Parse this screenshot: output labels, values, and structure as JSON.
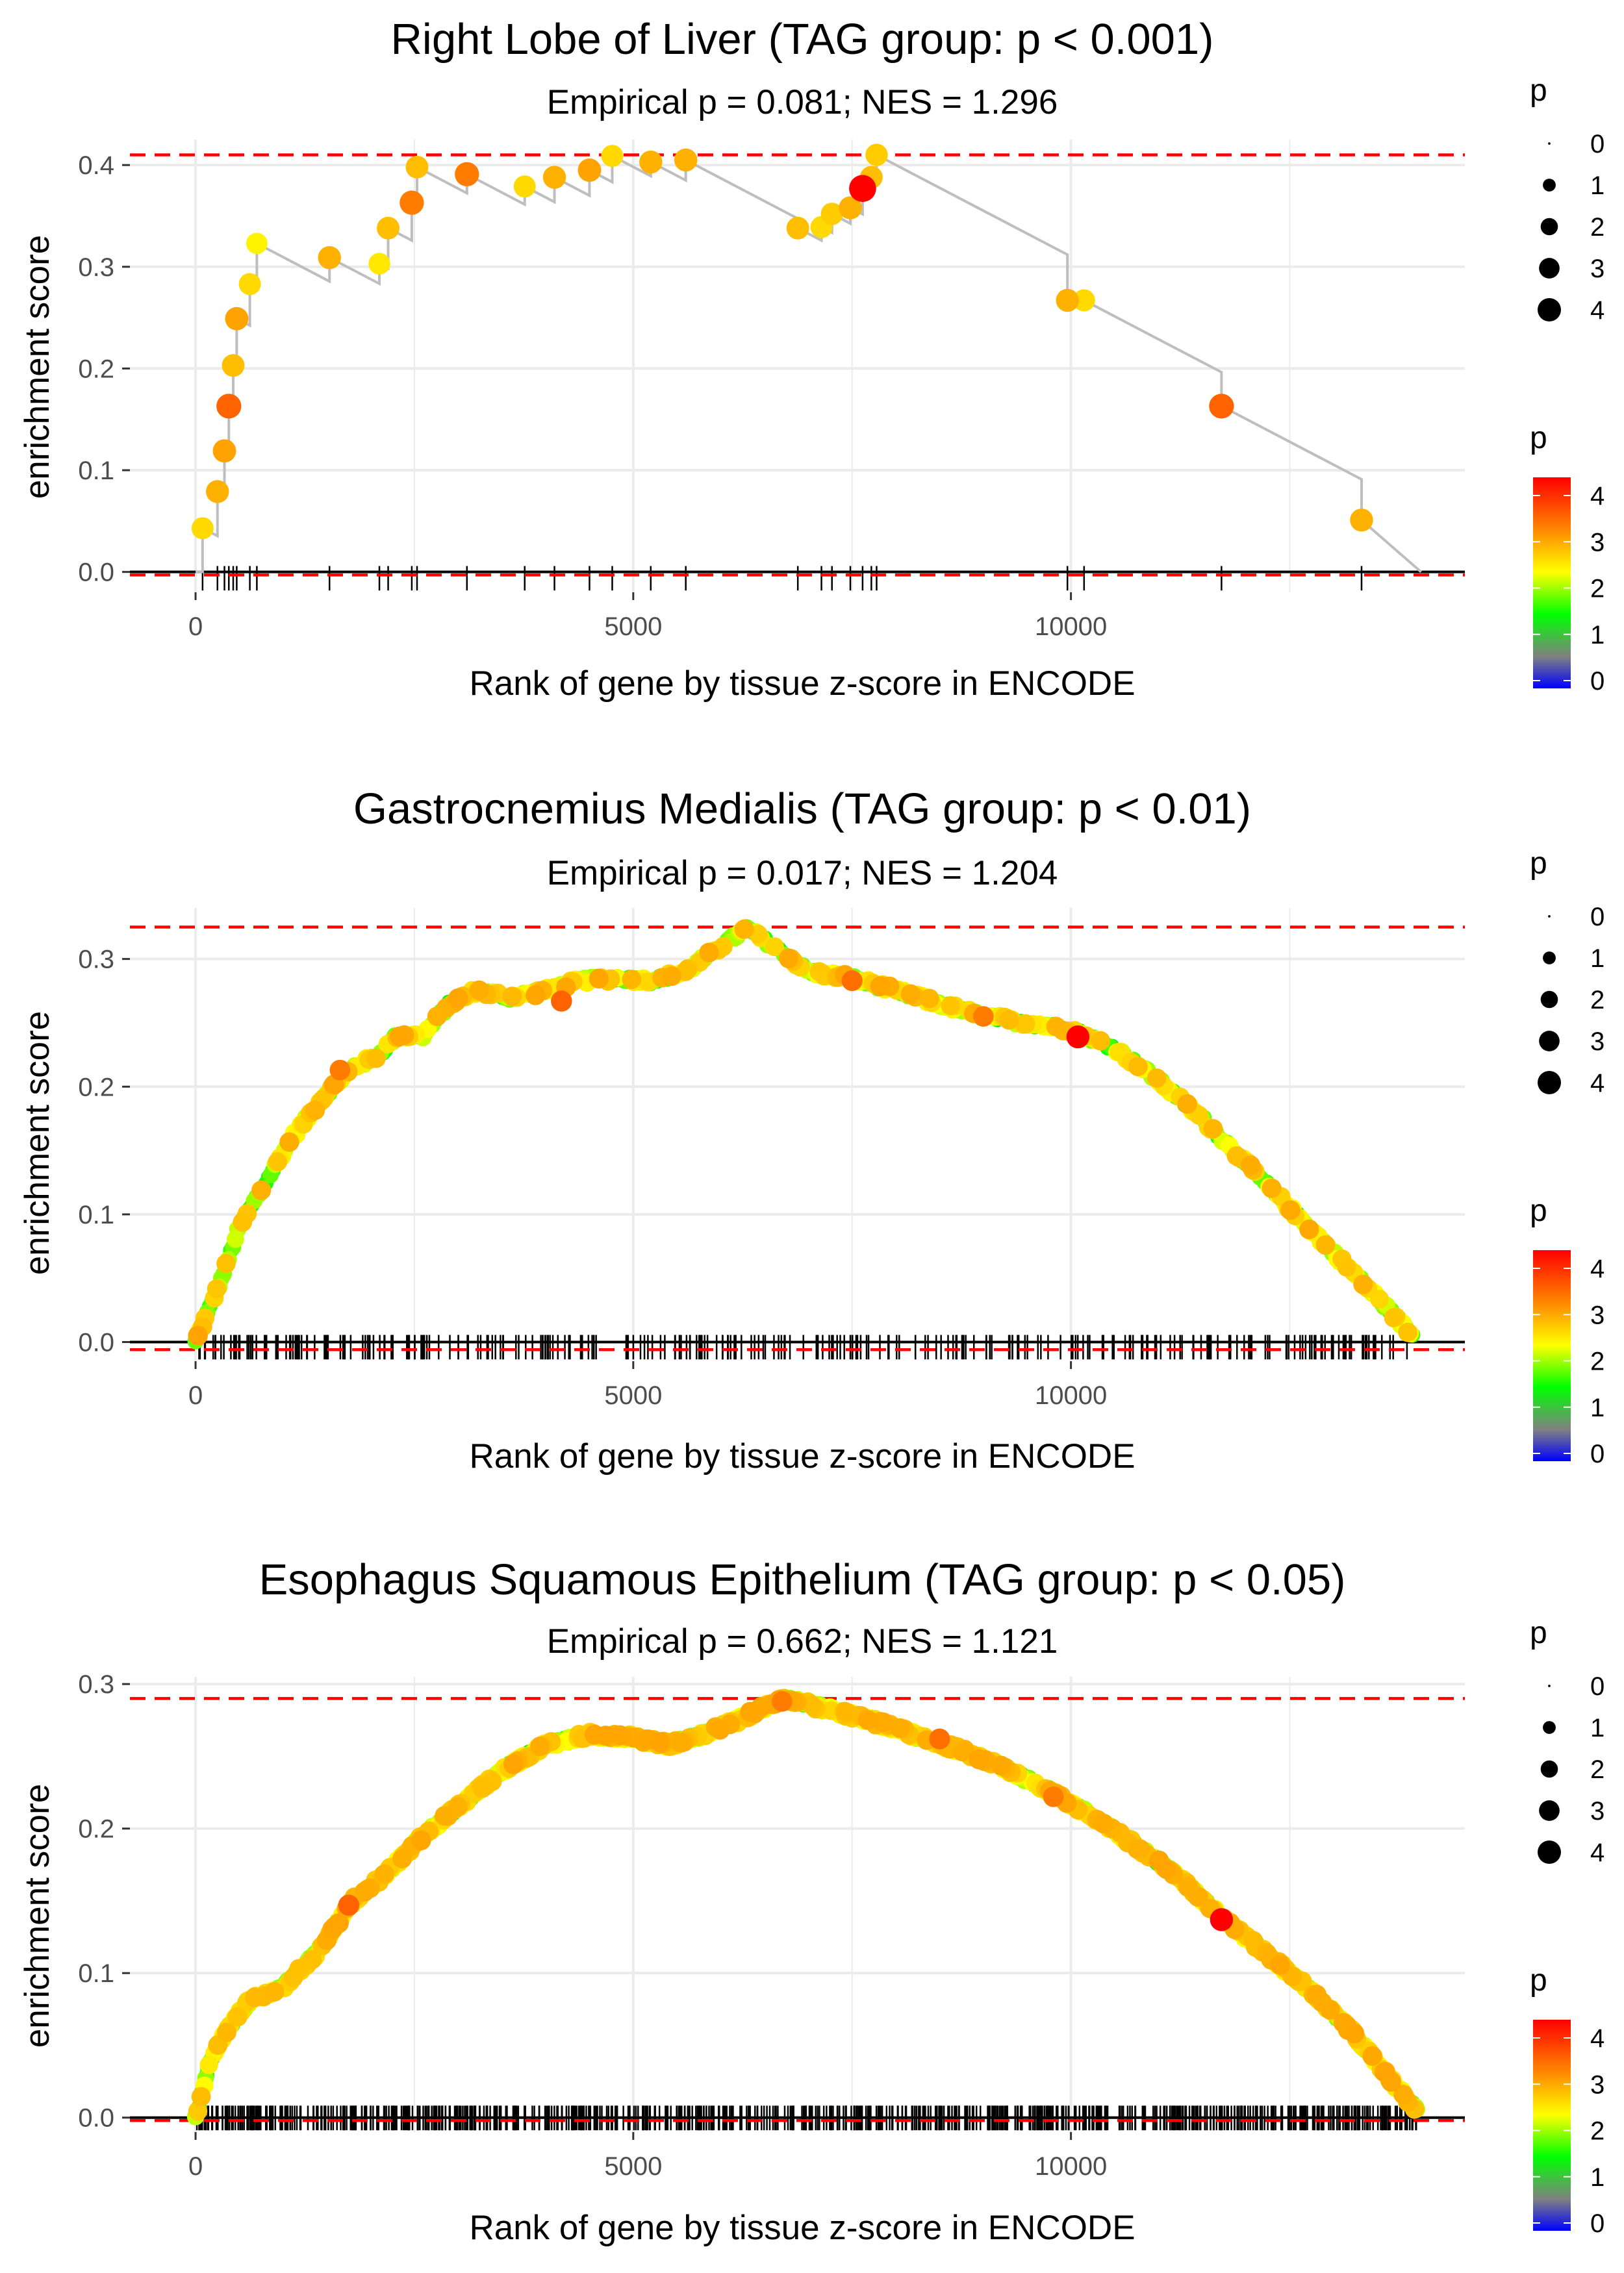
{
  "chart_data": [
    {
      "type": "scatter",
      "title": "Right Lobe of Liver (TAG group: p < 0.001)",
      "subtitle": "Empirical p = 0.081; NES = 1.296",
      "xlabel": "Rank of gene by tissue z-score in ENCODE",
      "ylabel": "enrichment score",
      "xlim": [
        -750,
        14500
      ],
      "ylim": [
        -0.02,
        0.425
      ],
      "xticks": [
        0,
        5000,
        10000
      ],
      "yticks": [
        0.0,
        0.1,
        0.2,
        0.3,
        0.4
      ],
      "yticklabels": [
        "0.0",
        "0.1",
        "0.2",
        "0.3",
        "0.4"
      ],
      "max_line": 0.41,
      "min_line": -0.003,
      "n_genes": 14000,
      "points": [
        {
          "x": 80,
          "y": 0.043,
          "p": 2.7
        },
        {
          "x": 250,
          "y": 0.079,
          "p": 3.0
        },
        {
          "x": 330,
          "y": 0.119,
          "p": 3.1
        },
        {
          "x": 380,
          "y": 0.163,
          "p": 3.6
        },
        {
          "x": 430,
          "y": 0.203,
          "p": 2.9
        },
        {
          "x": 470,
          "y": 0.249,
          "p": 3.1
        },
        {
          "x": 620,
          "y": 0.283,
          "p": 2.7
        },
        {
          "x": 700,
          "y": 0.323,
          "p": 2.5
        },
        {
          "x": 1530,
          "y": 0.309,
          "p": 3.0
        },
        {
          "x": 2100,
          "y": 0.303,
          "p": 2.6
        },
        {
          "x": 2200,
          "y": 0.338,
          "p": 2.9
        },
        {
          "x": 2470,
          "y": 0.363,
          "p": 3.4
        },
        {
          "x": 2530,
          "y": 0.398,
          "p": 2.9
        },
        {
          "x": 3100,
          "y": 0.391,
          "p": 3.4
        },
        {
          "x": 3760,
          "y": 0.379,
          "p": 2.7
        },
        {
          "x": 4100,
          "y": 0.388,
          "p": 3.0
        },
        {
          "x": 4500,
          "y": 0.395,
          "p": 3.1
        },
        {
          "x": 4760,
          "y": 0.409,
          "p": 2.7
        },
        {
          "x": 5200,
          "y": 0.403,
          "p": 3.0
        },
        {
          "x": 5600,
          "y": 0.405,
          "p": 3.0
        },
        {
          "x": 6880,
          "y": 0.338,
          "p": 2.9
        },
        {
          "x": 7150,
          "y": 0.339,
          "p": 2.7
        },
        {
          "x": 7270,
          "y": 0.352,
          "p": 2.8
        },
        {
          "x": 7480,
          "y": 0.358,
          "p": 3.0
        },
        {
          "x": 7620,
          "y": 0.377,
          "p": 4.4
        },
        {
          "x": 7720,
          "y": 0.388,
          "p": 2.9
        },
        {
          "x": 7780,
          "y": 0.41,
          "p": 2.8
        },
        {
          "x": 9960,
          "y": 0.267,
          "p": 3.0
        },
        {
          "x": 10150,
          "y": 0.267,
          "p": 2.7
        },
        {
          "x": 11720,
          "y": 0.163,
          "p": 3.6
        },
        {
          "x": 13320,
          "y": 0.051,
          "p": 3.0
        }
      ]
    },
    {
      "type": "scatter",
      "title": "Gastrocnemius Medialis (TAG group: p < 0.01)",
      "subtitle": "Empirical p = 0.017; NES = 1.204",
      "xlabel": "Rank of gene by tissue z-score in ENCODE",
      "ylabel": "enrichment score",
      "xlim": [
        -750,
        14500
      ],
      "ylim": [
        -0.015,
        0.34
      ],
      "xticks": [
        0,
        5000,
        10000
      ],
      "yticks": [
        0.0,
        0.1,
        0.2,
        0.3
      ],
      "yticklabels": [
        "0.0",
        "0.1",
        "0.2",
        "0.3"
      ],
      "max_line": 0.325,
      "min_line": -0.006,
      "n_genes": 14000,
      "curve": [
        [
          0,
          0.0
        ],
        [
          150,
          0.025
        ],
        [
          300,
          0.05
        ],
        [
          500,
          0.09
        ],
        [
          800,
          0.125
        ],
        [
          1100,
          0.16
        ],
        [
          1500,
          0.195
        ],
        [
          1800,
          0.215
        ],
        [
          2100,
          0.225
        ],
        [
          2300,
          0.24
        ],
        [
          2600,
          0.24
        ],
        [
          2900,
          0.265
        ],
        [
          3200,
          0.275
        ],
        [
          3600,
          0.27
        ],
        [
          4000,
          0.275
        ],
        [
          4400,
          0.283
        ],
        [
          4800,
          0.285
        ],
        [
          5200,
          0.283
        ],
        [
          5600,
          0.29
        ],
        [
          6000,
          0.31
        ],
        [
          6300,
          0.324
        ],
        [
          6600,
          0.31
        ],
        [
          7000,
          0.29
        ],
        [
          7500,
          0.285
        ],
        [
          8000,
          0.275
        ],
        [
          8500,
          0.265
        ],
        [
          9000,
          0.255
        ],
        [
          9500,
          0.25
        ],
        [
          10000,
          0.245
        ],
        [
          10500,
          0.23
        ],
        [
          11000,
          0.205
        ],
        [
          11500,
          0.175
        ],
        [
          12000,
          0.14
        ],
        [
          12500,
          0.105
        ],
        [
          13000,
          0.07
        ],
        [
          13500,
          0.035
        ],
        [
          13900,
          0.005
        ]
      ],
      "highlight": [
        {
          "x": 10080,
          "y": 0.239,
          "p": 4.4
        },
        {
          "x": 4180,
          "y": 0.267,
          "p": 3.6
        },
        {
          "x": 1650,
          "y": 0.213,
          "p": 3.4
        },
        {
          "x": 7500,
          "y": 0.283,
          "p": 3.5
        },
        {
          "x": 9000,
          "y": 0.255,
          "p": 3.4
        }
      ],
      "n_points": 520,
      "n_ticks": 300
    },
    {
      "type": "scatter",
      "title": "Esophagus Squamous Epithelium (TAG group: p < 0.05)",
      "subtitle": "Empirical p = 0.662; NES = 1.121",
      "xlabel": "Rank of gene by tissue z-score in ENCODE",
      "ylabel": "enrichment score",
      "xlim": [
        -750,
        14500
      ],
      "ylim": [
        -0.01,
        0.305
      ],
      "xticks": [
        0,
        5000,
        10000
      ],
      "yticks": [
        0.0,
        0.1,
        0.2,
        0.3
      ],
      "yticklabels": [
        "0.0",
        "0.1",
        "0.2",
        "0.3"
      ],
      "max_line": 0.29,
      "min_line": -0.002,
      "n_genes": 14000,
      "curve": [
        [
          0,
          0.0
        ],
        [
          150,
          0.035
        ],
        [
          300,
          0.055
        ],
        [
          600,
          0.08
        ],
        [
          1000,
          0.09
        ],
        [
          1400,
          0.115
        ],
        [
          1800,
          0.15
        ],
        [
          2200,
          0.17
        ],
        [
          2600,
          0.195
        ],
        [
          3000,
          0.215
        ],
        [
          3500,
          0.24
        ],
        [
          4000,
          0.258
        ],
        [
          4500,
          0.265
        ],
        [
          5000,
          0.263
        ],
        [
          5400,
          0.258
        ],
        [
          5800,
          0.265
        ],
        [
          6200,
          0.275
        ],
        [
          6700,
          0.29
        ],
        [
          7200,
          0.283
        ],
        [
          7700,
          0.275
        ],
        [
          8200,
          0.265
        ],
        [
          8700,
          0.255
        ],
        [
          9200,
          0.243
        ],
        [
          9700,
          0.228
        ],
        [
          10200,
          0.21
        ],
        [
          10700,
          0.19
        ],
        [
          11200,
          0.168
        ],
        [
          11700,
          0.14
        ],
        [
          12200,
          0.115
        ],
        [
          12700,
          0.09
        ],
        [
          13200,
          0.06
        ],
        [
          13600,
          0.03
        ],
        [
          13950,
          0.005
        ]
      ],
      "highlight": [
        {
          "x": 11720,
          "y": 0.137,
          "p": 4.4
        },
        {
          "x": 1750,
          "y": 0.147,
          "p": 3.6
        },
        {
          "x": 6700,
          "y": 0.288,
          "p": 3.4
        },
        {
          "x": 8500,
          "y": 0.262,
          "p": 3.5
        },
        {
          "x": 9800,
          "y": 0.222,
          "p": 3.4
        }
      ],
      "n_points": 1100,
      "n_ticks": 720
    }
  ],
  "legend": {
    "size_title": "p",
    "size_labels": [
      "0",
      "1",
      "2",
      "3",
      "4"
    ],
    "color_title": "p",
    "color_labels": [
      "4",
      "3",
      "2",
      "1",
      "0"
    ]
  },
  "colors": {
    "grid": "#ebebeb",
    "max_line": "#ff0000",
    "curve": "#bebebe",
    "ticks": "#000000",
    "gradient": [
      "#ff0000",
      "#ff8800",
      "#ffff00",
      "#00ff00",
      "#808080",
      "#0000ff"
    ]
  }
}
